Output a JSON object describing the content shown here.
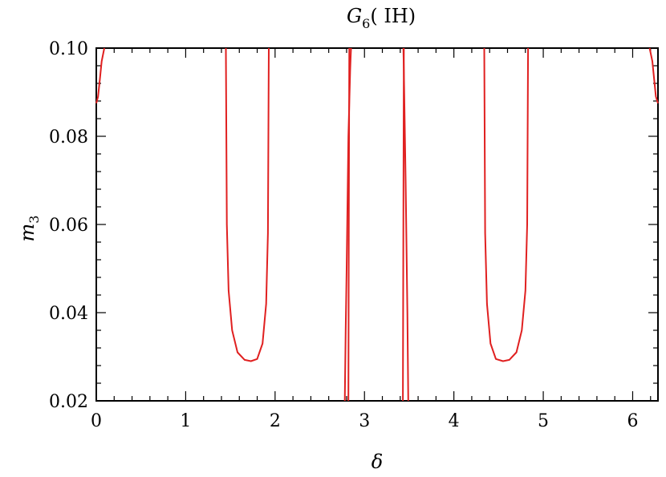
{
  "chart_data": {
    "type": "line",
    "title": "G",
    "title_subscript": "6",
    "title_suffix": "( IH)",
    "xlabel": "δ",
    "ylabel": "m",
    "ylabel_subscript": "3",
    "xlim": [
      0,
      6.283
    ],
    "ylim": [
      0.02,
      0.1
    ],
    "x_ticks": [
      0,
      1,
      2,
      3,
      4,
      5,
      6
    ],
    "x_tick_labels": [
      "0",
      "1",
      "2",
      "3",
      "4",
      "5",
      "6"
    ],
    "y_ticks": [
      0.02,
      0.04,
      0.06,
      0.08,
      0.1
    ],
    "y_tick_labels": [
      "0.02",
      "0.04",
      "0.06",
      "0.08",
      "0.10"
    ],
    "grid": false,
    "line_color": "#e02020",
    "series": [
      {
        "x": [
          0.0,
          0.02,
          0.04,
          0.06,
          0.09
        ],
        "y": [
          0.0875,
          0.089,
          0.093,
          0.097,
          0.1
        ]
      },
      {
        "x": [
          1.45,
          1.46,
          1.48,
          1.52,
          1.58,
          1.66,
          1.73,
          1.8,
          1.86,
          1.9,
          1.92,
          1.93
        ],
        "y": [
          0.1,
          0.06,
          0.045,
          0.036,
          0.031,
          0.0293,
          0.029,
          0.0295,
          0.033,
          0.042,
          0.058,
          0.1
        ]
      },
      {
        "x": [
          2.78,
          2.79,
          2.8,
          2.82,
          2.84,
          2.845,
          2.85
        ],
        "y": [
          0.02,
          0.036,
          0.05,
          0.08,
          0.095,
          0.098,
          0.1
        ]
      },
      {
        "x": [
          2.82,
          2.825,
          2.83
        ],
        "y": [
          0.02,
          0.06,
          0.1
        ]
      },
      {
        "x": [
          3.43,
          3.435,
          3.44
        ],
        "y": [
          0.02,
          0.06,
          0.1
        ]
      },
      {
        "x": [
          3.435,
          3.44,
          3.46,
          3.48,
          3.49
        ],
        "y": [
          0.1,
          0.095,
          0.07,
          0.04,
          0.02
        ]
      },
      {
        "x": [
          4.34,
          4.35,
          4.37,
          4.41,
          4.47,
          4.55,
          4.62,
          4.7,
          4.76,
          4.8,
          4.82,
          4.83
        ],
        "y": [
          0.1,
          0.058,
          0.042,
          0.033,
          0.0295,
          0.029,
          0.0293,
          0.031,
          0.036,
          0.045,
          0.06,
          0.1
        ]
      },
      {
        "x": [
          6.19,
          6.22,
          6.24,
          6.26,
          6.283
        ],
        "y": [
          0.1,
          0.097,
          0.093,
          0.089,
          0.0875
        ]
      }
    ]
  }
}
